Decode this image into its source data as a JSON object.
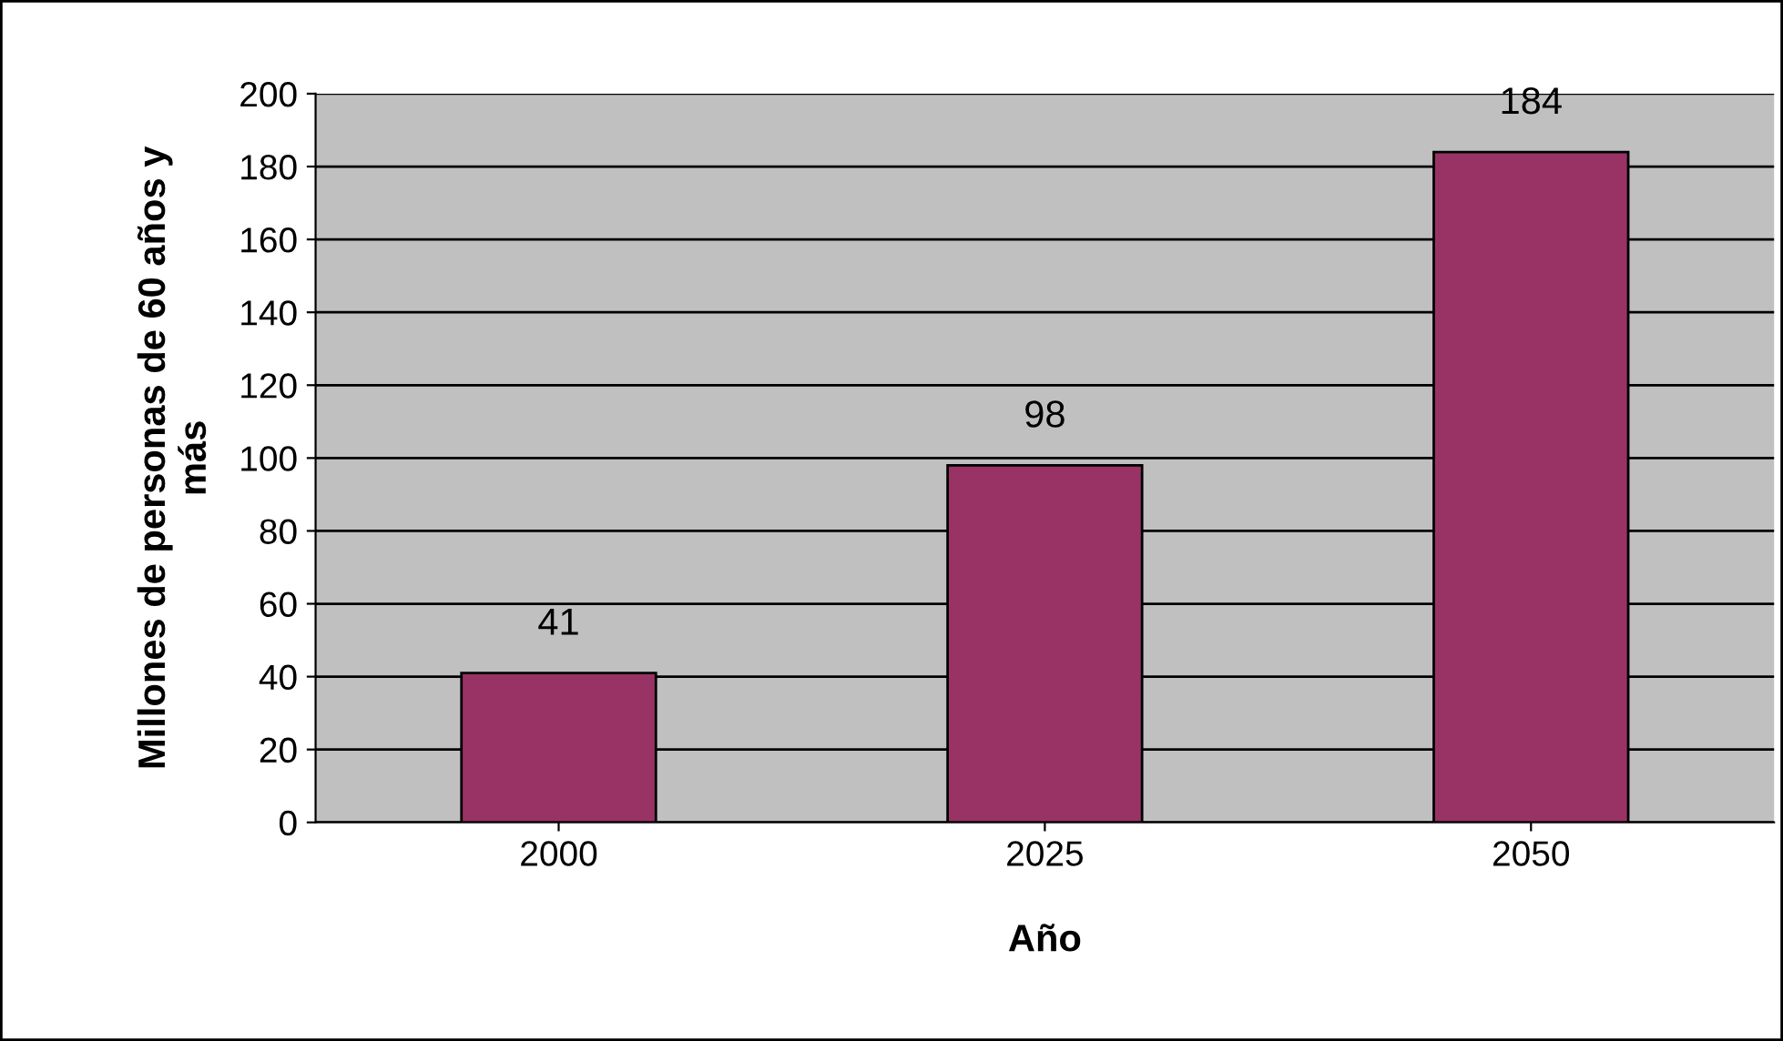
{
  "chart_data": {
    "type": "bar",
    "xlabel": "Año",
    "ylabel": "Millones de personas de 60 años y más",
    "categories": [
      "2000",
      "2025",
      "2050"
    ],
    "values": [
      41,
      98,
      184
    ],
    "color": "#993366",
    "ylim": [
      0,
      200
    ],
    "yticks": [
      0,
      20,
      40,
      60,
      80,
      100,
      120,
      140,
      160,
      180,
      200
    ],
    "grid": "y",
    "data_labels": true
  }
}
